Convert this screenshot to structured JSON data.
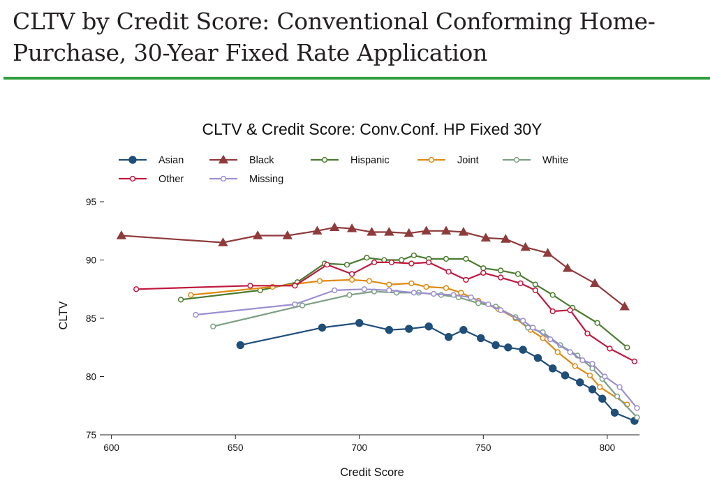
{
  "page": {
    "title": "CLTV by Credit Score: Conventional Conforming Home-Purchase, 30-Year Fixed Rate Application",
    "accent_color": "#2e9e3e"
  },
  "chart_data": {
    "type": "line",
    "title": "CLTV & Credit Score: Conv.Conf. HP Fixed 30Y",
    "xlabel": "Credit Score",
    "ylabel": "CLTV",
    "xlim": [
      597,
      813
    ],
    "ylim": [
      75,
      96.5
    ],
    "xticks": [
      600,
      650,
      700,
      750,
      800
    ],
    "yticks": [
      75,
      80,
      85,
      90,
      95
    ],
    "grid": false,
    "legend_position": "top",
    "series": [
      {
        "name": "Asian",
        "color": "#1f4e79",
        "marker": "filled-circle",
        "x": [
          652,
          685,
          700,
          712,
          720,
          728,
          736,
          742,
          749,
          755,
          760,
          766,
          772,
          778,
          783,
          789,
          794,
          798,
          803,
          811
        ],
        "y": [
          82.7,
          84.2,
          84.6,
          84.0,
          84.1,
          84.3,
          83.4,
          84.0,
          83.3,
          82.7,
          82.5,
          82.3,
          81.6,
          80.7,
          80.1,
          79.5,
          78.9,
          78.1,
          76.9,
          76.2
        ]
      },
      {
        "name": "Black",
        "color": "#8f3b3b",
        "marker": "filled-triangle",
        "x": [
          604,
          645,
          659,
          671,
          683,
          690,
          697,
          705,
          712,
          720,
          727,
          735,
          742,
          751,
          759,
          767,
          776,
          784,
          795,
          807
        ],
        "y": [
          92.1,
          91.5,
          92.1,
          92.1,
          92.5,
          92.8,
          92.7,
          92.4,
          92.4,
          92.3,
          92.5,
          92.5,
          92.4,
          91.9,
          91.8,
          91.1,
          90.6,
          89.3,
          88.0,
          86.0
        ]
      },
      {
        "name": "Hispanic",
        "color": "#4b7b2f",
        "marker": "hollow-circle",
        "x": [
          628,
          660,
          675,
          686,
          695,
          703,
          710,
          717,
          722,
          728,
          735,
          743,
          750,
          757,
          764,
          771,
          778,
          786,
          796,
          808
        ],
        "y": [
          86.6,
          87.4,
          88.1,
          89.7,
          89.6,
          90.2,
          90.0,
          90.0,
          90.4,
          90.1,
          90.1,
          90.1,
          89.3,
          89.1,
          88.8,
          87.9,
          87.0,
          85.9,
          84.6,
          82.5
        ]
      },
      {
        "name": "Joint",
        "color": "#e08a10",
        "marker": "hollow-circle",
        "x": [
          632,
          665,
          684,
          697,
          704,
          712,
          721,
          727,
          735,
          741,
          748,
          756,
          763,
          769,
          774,
          780,
          787,
          793,
          797,
          808
        ],
        "y": [
          87.0,
          87.7,
          88.2,
          88.3,
          88.2,
          87.9,
          88.0,
          87.7,
          87.6,
          87.2,
          86.5,
          85.8,
          85.0,
          84.0,
          83.3,
          82.1,
          80.9,
          80.1,
          79.1,
          77.6
        ]
      },
      {
        "name": "White",
        "color": "#7d9f84",
        "marker": "hollow-circle",
        "x": [
          641,
          677,
          696,
          706,
          715,
          724,
          733,
          740,
          748,
          755,
          763,
          768,
          774,
          781,
          788,
          794,
          798,
          804,
          812
        ],
        "y": [
          84.3,
          86.1,
          87.0,
          87.3,
          87.2,
          87.2,
          87.0,
          86.8,
          86.3,
          86.0,
          85.1,
          84.2,
          83.8,
          82.7,
          81.8,
          80.7,
          79.8,
          78.3,
          76.5
        ]
      },
      {
        "name": "Other",
        "color": "#c0183f",
        "marker": "hollow-circle",
        "x": [
          610,
          656,
          674,
          687,
          697,
          706,
          713,
          721,
          728,
          736,
          743,
          750,
          757,
          765,
          771,
          778,
          785,
          792,
          801,
          811
        ],
        "y": [
          87.5,
          87.8,
          87.8,
          89.6,
          88.8,
          89.8,
          89.8,
          89.7,
          89.8,
          89.0,
          88.3,
          88.9,
          88.5,
          88.0,
          87.4,
          85.6,
          85.7,
          83.7,
          82.4,
          81.3
        ]
      },
      {
        "name": "Missing",
        "color": "#9b8fd1",
        "marker": "hollow-circle",
        "x": [
          634,
          674,
          690,
          702,
          712,
          722,
          730,
          738,
          745,
          752,
          757,
          766,
          770,
          777,
          785,
          790,
          794,
          799,
          805,
          812
        ],
        "y": [
          85.3,
          86.2,
          87.4,
          87.5,
          87.4,
          87.2,
          87.1,
          87.0,
          86.8,
          86.2,
          85.7,
          84.8,
          84.2,
          83.2,
          82.1,
          81.4,
          81.1,
          80.0,
          79.1,
          77.3
        ]
      }
    ]
  }
}
